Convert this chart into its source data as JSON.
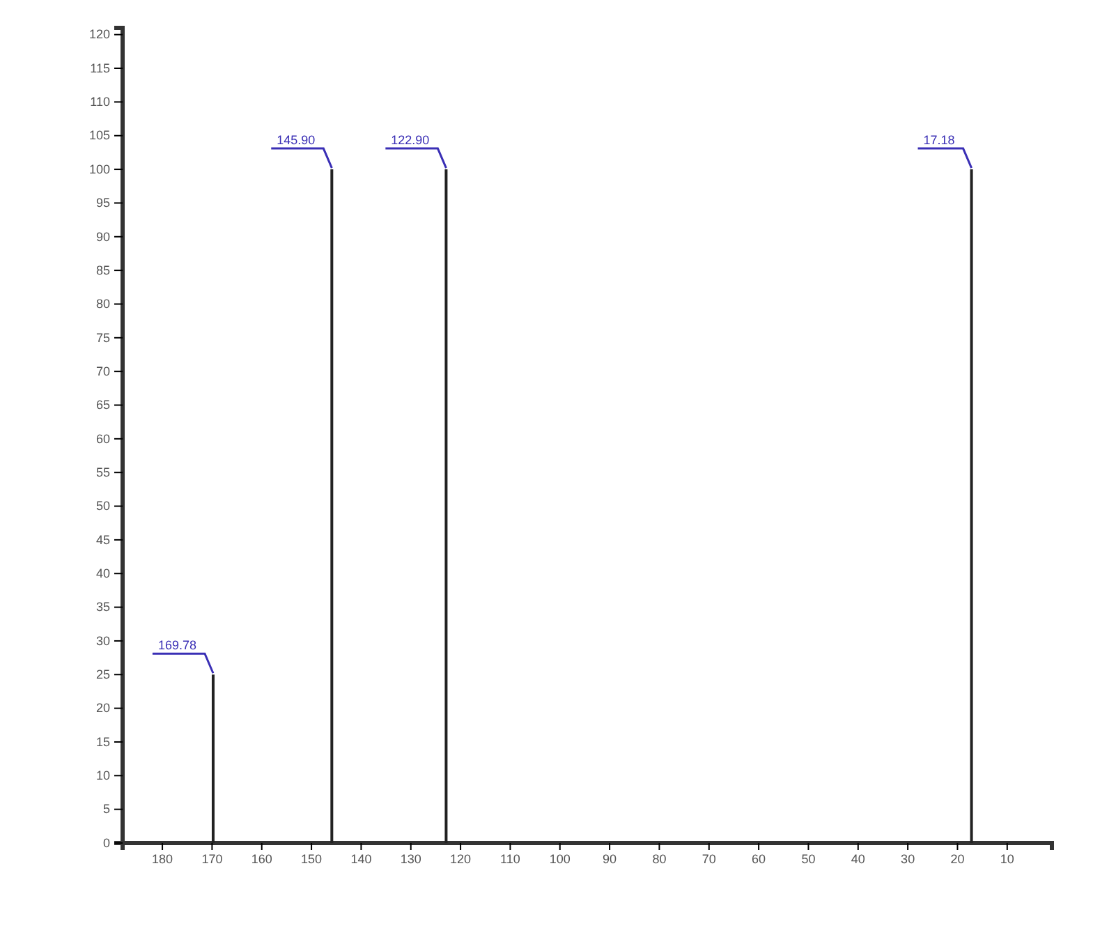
{
  "chart_data": {
    "type": "bar",
    "x": [
      169.78,
      145.9,
      122.9,
      17.18
    ],
    "values": [
      25,
      100,
      100,
      100
    ],
    "color": "#222222",
    "xlim": [
      188,
      1
    ],
    "ylim": [
      0,
      121
    ],
    "xticks": [
      180,
      170,
      160,
      150,
      140,
      130,
      120,
      110,
      100,
      90,
      80,
      70,
      60,
      50,
      40,
      30,
      20,
      10
    ],
    "yticks": [
      0,
      5,
      10,
      15,
      20,
      25,
      30,
      35,
      40,
      45,
      50,
      55,
      60,
      65,
      70,
      75,
      80,
      85,
      90,
      95,
      100,
      105,
      110,
      115,
      120
    ],
    "annotations": [
      {
        "text": "169.78",
        "x": 169.78,
        "y": 25
      },
      {
        "text": "145.90",
        "x": 145.9,
        "y": 100
      },
      {
        "text": "122.90",
        "x": 122.9,
        "y": 100
      },
      {
        "text": "17.18",
        "x": 17.18,
        "y": 100
      }
    ],
    "grid": false
  }
}
